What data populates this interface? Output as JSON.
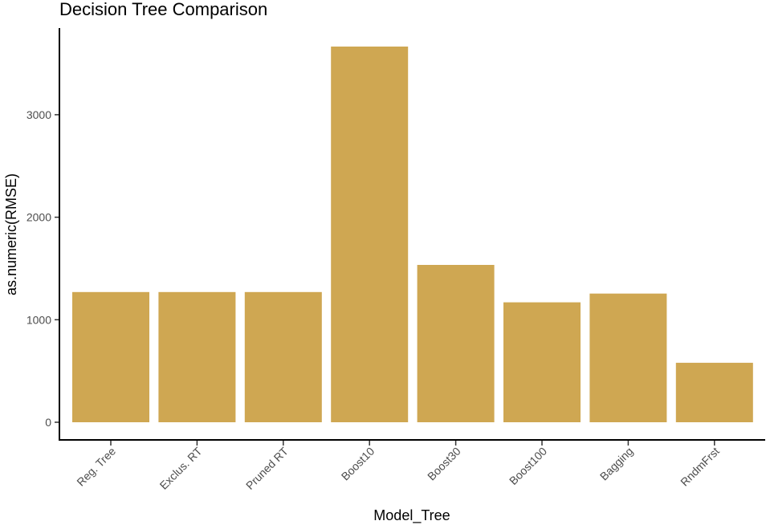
{
  "chart_data": {
    "type": "bar",
    "title": "Decision Tree Comparison",
    "xlabel": "Model_Tree",
    "ylabel": "as.numeric(RMSE)",
    "categories": [
      "Reg. Tree",
      "Exclus. RT",
      "Pruned RT",
      "Boost10",
      "Boost30",
      "Boost100",
      "Bagging",
      "RndmFrst"
    ],
    "values": [
      1270,
      1270,
      1270,
      3665,
      1535,
      1170,
      1255,
      580
    ],
    "yticks": [
      0,
      1000,
      2000,
      3000
    ],
    "ylim": [
      0,
      3665
    ],
    "bar_color": "#CFA752",
    "grid": false,
    "legend": "none"
  }
}
